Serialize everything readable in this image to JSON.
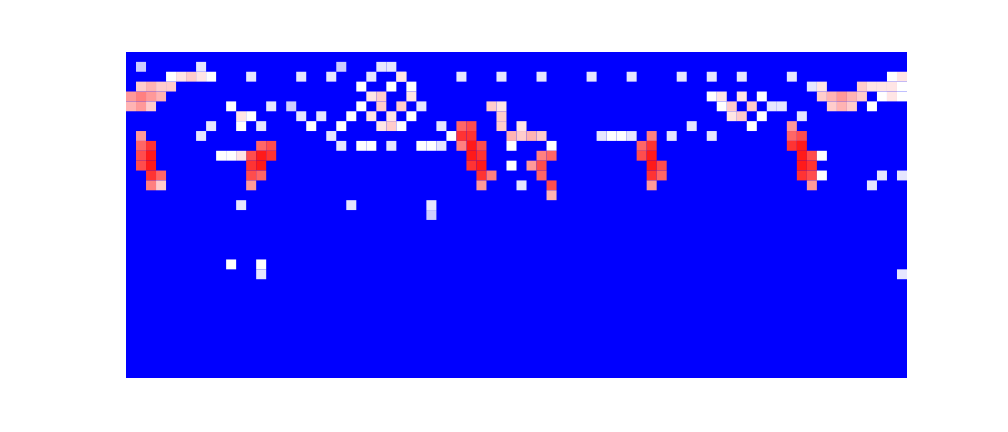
{
  "chart_data": {
    "type": "heatmap",
    "tick_labels": false,
    "xlim": [
      0,
      78
    ],
    "ylim": [
      0,
      33
    ],
    "zlim": [
      0,
      1
    ],
    "cells": [
      [
        0,
        28,
        0.7
      ],
      [
        1,
        28,
        0.75
      ],
      [
        2,
        28,
        0.7
      ],
      [
        3,
        28,
        0.65
      ],
      [
        0,
        27,
        0.65
      ],
      [
        1,
        27,
        0.7
      ],
      [
        2,
        27,
        0.6
      ],
      [
        1,
        29,
        0.6
      ],
      [
        2,
        29,
        0.65
      ],
      [
        3,
        29,
        0.6
      ],
      [
        4,
        29,
        0.6
      ],
      [
        5,
        30,
        0.55
      ],
      [
        6,
        30,
        0.6
      ],
      [
        7,
        30,
        0.55
      ],
      [
        8,
        30,
        0.5
      ],
      [
        4,
        30,
        0.5
      ],
      [
        7,
        31,
        0.45
      ],
      [
        1,
        31,
        0.4
      ],
      [
        1,
        23,
        0.8
      ],
      [
        2,
        23,
        0.9
      ],
      [
        1,
        22,
        0.85
      ],
      [
        2,
        22,
        0.95
      ],
      [
        1,
        21,
        0.85
      ],
      [
        2,
        21,
        0.95
      ],
      [
        2,
        20,
        0.9
      ],
      [
        3,
        20,
        0.8
      ],
      [
        2,
        19,
        0.75
      ],
      [
        1,
        24,
        0.7
      ],
      [
        3,
        19,
        0.6
      ],
      [
        13,
        23,
        0.8
      ],
      [
        14,
        23,
        0.85
      ],
      [
        12,
        22,
        0.85
      ],
      [
        13,
        22,
        0.95
      ],
      [
        14,
        22,
        0.9
      ],
      [
        12,
        21,
        0.9
      ],
      [
        13,
        21,
        0.95
      ],
      [
        12,
        20,
        0.85
      ],
      [
        13,
        20,
        0.8
      ],
      [
        12,
        19,
        0.7
      ],
      [
        9,
        22,
        0.5
      ],
      [
        10,
        22,
        0.5
      ],
      [
        11,
        22,
        0.55
      ],
      [
        10,
        27,
        0.5
      ],
      [
        11,
        26,
        0.55
      ],
      [
        12,
        26,
        0.5
      ],
      [
        11,
        25,
        0.5
      ],
      [
        13,
        25,
        0.45
      ],
      [
        14,
        27,
        0.45
      ],
      [
        7,
        24,
        0.45
      ],
      [
        8,
        25,
        0.45
      ],
      [
        12,
        30,
        0.45
      ],
      [
        17,
        30,
        0.45
      ],
      [
        20,
        30,
        0.45
      ],
      [
        25,
        31,
        0.45
      ],
      [
        33,
        30,
        0.45
      ],
      [
        37,
        30,
        0.45
      ],
      [
        41,
        30,
        0.45
      ],
      [
        46,
        30,
        0.45
      ],
      [
        50,
        30,
        0.45
      ],
      [
        55,
        30,
        0.45
      ],
      [
        58,
        30,
        0.45
      ],
      [
        61,
        30,
        0.45
      ],
      [
        66,
        30,
        0.45
      ],
      [
        21,
        31,
        0.4
      ],
      [
        27,
        30,
        0.45
      ],
      [
        17,
        26,
        0.45
      ],
      [
        18,
        25,
        0.5
      ],
      [
        19,
        26,
        0.45
      ],
      [
        21,
        25,
        0.5
      ],
      [
        22,
        26,
        0.5
      ],
      [
        20,
        24,
        0.45
      ],
      [
        16,
        27,
        0.4
      ],
      [
        23,
        29,
        0.5
      ],
      [
        24,
        28,
        0.55
      ],
      [
        25,
        28,
        0.6
      ],
      [
        26,
        29,
        0.5
      ],
      [
        27,
        30,
        0.55
      ],
      [
        28,
        29,
        0.5
      ],
      [
        24,
        26,
        0.55
      ],
      [
        25,
        27,
        0.6
      ],
      [
        26,
        26,
        0.55
      ],
      [
        27,
        27,
        0.6
      ],
      [
        28,
        26,
        0.5
      ],
      [
        25,
        25,
        0.55
      ],
      [
        26,
        25,
        0.6
      ],
      [
        27,
        25,
        0.5
      ],
      [
        23,
        27,
        0.5
      ],
      [
        28,
        28,
        0.55
      ],
      [
        24,
        30,
        0.45
      ],
      [
        26,
        31,
        0.45
      ],
      [
        29,
        27,
        0.45
      ],
      [
        21,
        23,
        0.45
      ],
      [
        23,
        23,
        0.5
      ],
      [
        24,
        23,
        0.5
      ],
      [
        26,
        23,
        0.45
      ],
      [
        29,
        23,
        0.5
      ],
      [
        30,
        23,
        0.5
      ],
      [
        31,
        23,
        0.45
      ],
      [
        32,
        24,
        0.5
      ],
      [
        31,
        25,
        0.45
      ],
      [
        33,
        25,
        0.8
      ],
      [
        34,
        25,
        0.85
      ],
      [
        33,
        24,
        0.9
      ],
      [
        34,
        24,
        0.9
      ],
      [
        34,
        23,
        0.95
      ],
      [
        35,
        23,
        0.85
      ],
      [
        34,
        22,
        0.95
      ],
      [
        35,
        22,
        0.9
      ],
      [
        34,
        21,
        0.9
      ],
      [
        35,
        21,
        0.95
      ],
      [
        35,
        20,
        0.9
      ],
      [
        36,
        20,
        0.75
      ],
      [
        35,
        19,
        0.7
      ],
      [
        33,
        23,
        0.75
      ],
      [
        36,
        27,
        0.6
      ],
      [
        37,
        27,
        0.55
      ],
      [
        37,
        26,
        0.6
      ],
      [
        37,
        25,
        0.6
      ],
      [
        38,
        24,
        0.65
      ],
      [
        39,
        24,
        0.6
      ],
      [
        40,
        24,
        0.65
      ],
      [
        41,
        24,
        0.6
      ],
      [
        39,
        25,
        0.55
      ],
      [
        42,
        23,
        0.5
      ],
      [
        38,
        23,
        0.5
      ],
      [
        41,
        22,
        0.75
      ],
      [
        42,
        22,
        0.8
      ],
      [
        40,
        21,
        0.7
      ],
      [
        41,
        21,
        0.85
      ],
      [
        41,
        20,
        0.8
      ],
      [
        42,
        19,
        0.85
      ],
      [
        42,
        18,
        0.65
      ],
      [
        38,
        21,
        0.5
      ],
      [
        39,
        19,
        0.45
      ],
      [
        22,
        17,
        0.45
      ],
      [
        30,
        17,
        0.45
      ],
      [
        30,
        16,
        0.4
      ],
      [
        11,
        17,
        0.45
      ],
      [
        48,
        24,
        0.5
      ],
      [
        49,
        24,
        0.5
      ],
      [
        50,
        24,
        0.45
      ],
      [
        47,
        24,
        0.45
      ],
      [
        52,
        24,
        0.75
      ],
      [
        51,
        23,
        0.8
      ],
      [
        52,
        23,
        0.9
      ],
      [
        51,
        22,
        0.85
      ],
      [
        52,
        22,
        0.95
      ],
      [
        52,
        21,
        0.95
      ],
      [
        53,
        21,
        0.85
      ],
      [
        52,
        20,
        0.9
      ],
      [
        53,
        20,
        0.8
      ],
      [
        52,
        19,
        0.7
      ],
      [
        54,
        24,
        0.45
      ],
      [
        56,
        25,
        0.45
      ],
      [
        58,
        24,
        0.45
      ],
      [
        58,
        28,
        0.5
      ],
      [
        59,
        28,
        0.55
      ],
      [
        60,
        27,
        0.6
      ],
      [
        61,
        28,
        0.55
      ],
      [
        62,
        27,
        0.6
      ],
      [
        60,
        26,
        0.55
      ],
      [
        61,
        26,
        0.6
      ],
      [
        62,
        25,
        0.5
      ],
      [
        63,
        26,
        0.5
      ],
      [
        59,
        27,
        0.5
      ],
      [
        64,
        27,
        0.45
      ],
      [
        63,
        28,
        0.5
      ],
      [
        66,
        25,
        0.7
      ],
      [
        66,
        24,
        0.8
      ],
      [
        67,
        24,
        0.85
      ],
      [
        66,
        23,
        0.9
      ],
      [
        67,
        23,
        0.95
      ],
      [
        67,
        22,
        0.95
      ],
      [
        68,
        22,
        0.85
      ],
      [
        67,
        21,
        0.95
      ],
      [
        68,
        21,
        0.9
      ],
      [
        67,
        20,
        0.9
      ],
      [
        68,
        20,
        0.85
      ],
      [
        68,
        19,
        0.7
      ],
      [
        69,
        22,
        0.5
      ],
      [
        69,
        20,
        0.5
      ],
      [
        69,
        28,
        0.6
      ],
      [
        70,
        28,
        0.65
      ],
      [
        71,
        28,
        0.7
      ],
      [
        72,
        28,
        0.65
      ],
      [
        73,
        28,
        0.6
      ],
      [
        70,
        27,
        0.6
      ],
      [
        71,
        27,
        0.65
      ],
      [
        72,
        27,
        0.6
      ],
      [
        73,
        29,
        0.6
      ],
      [
        74,
        29,
        0.55
      ],
      [
        75,
        29,
        0.55
      ],
      [
        76,
        30,
        0.5
      ],
      [
        77,
        30,
        0.55
      ],
      [
        75,
        28,
        0.5
      ],
      [
        76,
        28,
        0.55
      ],
      [
        77,
        28,
        0.5
      ],
      [
        76,
        29,
        0.55
      ],
      [
        74,
        27,
        0.5
      ],
      [
        77,
        29,
        0.5
      ],
      [
        68,
        29,
        0.45
      ],
      [
        69,
        29,
        0.55
      ],
      [
        65,
        27,
        0.45
      ],
      [
        67,
        26,
        0.45
      ],
      [
        74,
        19,
        0.45
      ],
      [
        75,
        20,
        0.45
      ],
      [
        77,
        20,
        0.45
      ],
      [
        77,
        10,
        0.45
      ],
      [
        10,
        11,
        0.5
      ],
      [
        13,
        11,
        0.5
      ],
      [
        13,
        10,
        0.45
      ]
    ]
  }
}
